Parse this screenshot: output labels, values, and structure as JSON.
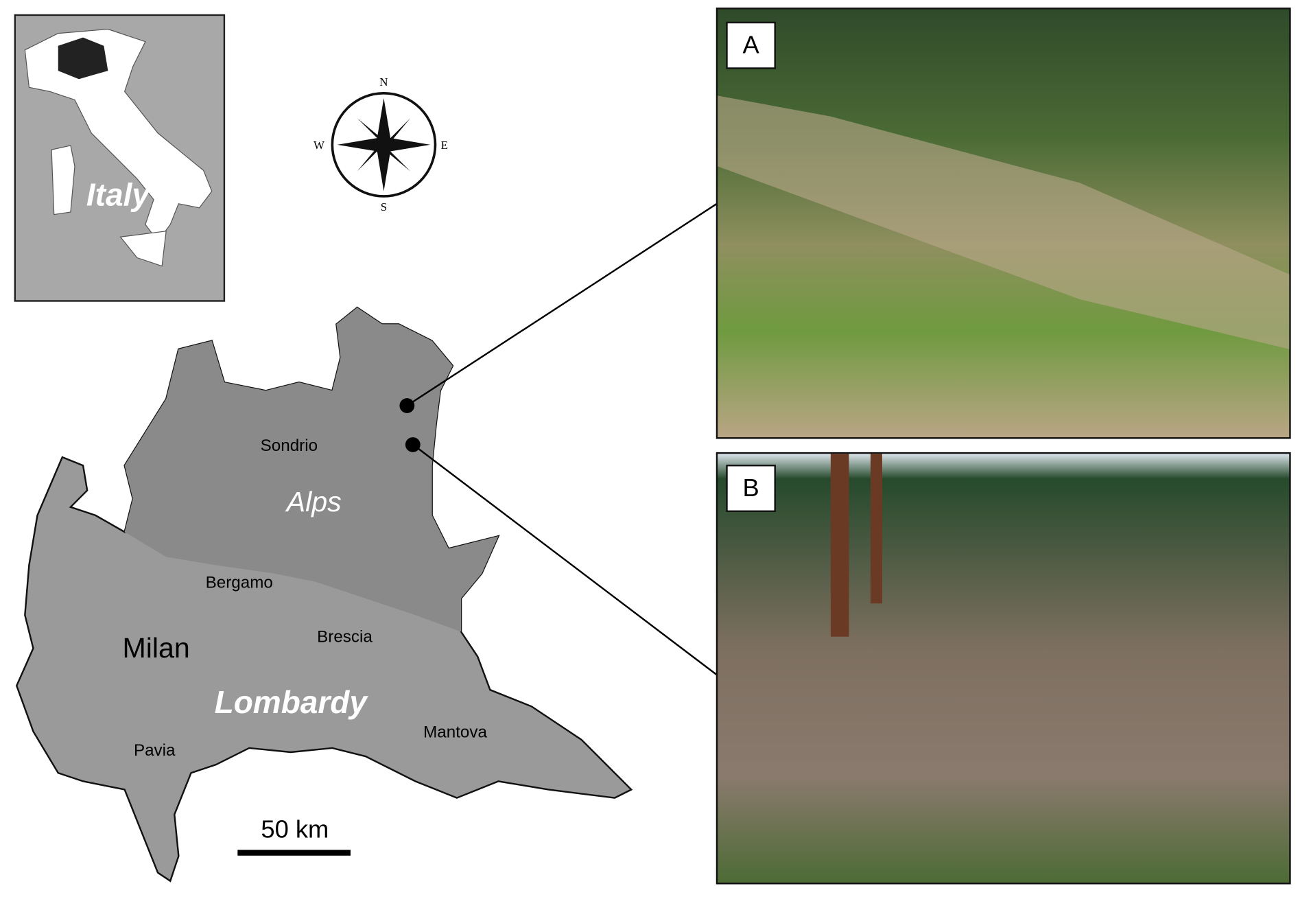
{
  "inset": {
    "label": "Italy"
  },
  "compass": {
    "n": "N",
    "s": "S",
    "e": "E",
    "w": "W"
  },
  "map": {
    "region": "Lombardy",
    "mountains": "Alps",
    "cities": [
      "Sondrio",
      "Bergamo",
      "Brescia",
      "Milan",
      "Mantova",
      "Pavia"
    ],
    "scale": "50 km"
  },
  "photos": [
    {
      "label": "A"
    },
    {
      "label": "B"
    }
  ]
}
